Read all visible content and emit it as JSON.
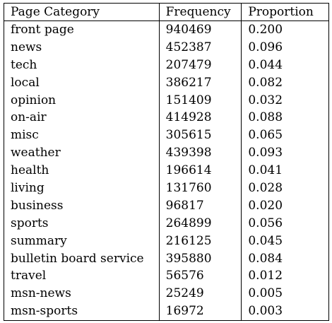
{
  "table": {
    "headers": [
      "Page Category",
      "Frequency",
      "Proportion"
    ],
    "rows": [
      [
        "front page",
        "940469",
        "0.200"
      ],
      [
        "news",
        "452387",
        "0.096"
      ],
      [
        "tech",
        "207479",
        "0.044"
      ],
      [
        "local",
        "386217",
        "0.082"
      ],
      [
        "opinion",
        "151409",
        "0.032"
      ],
      [
        "on-air",
        "414928",
        "0.088"
      ],
      [
        "misc",
        "305615",
        "0.065"
      ],
      [
        "weather",
        "439398",
        "0.093"
      ],
      [
        "health",
        "196614",
        "0.041"
      ],
      [
        "living",
        "131760",
        "0.028"
      ],
      [
        "business",
        "96817",
        "0.020"
      ],
      [
        "sports",
        "264899",
        "0.056"
      ],
      [
        "summary",
        "216125",
        "0.045"
      ],
      [
        "bulletin board service",
        "395880",
        "0.084"
      ],
      [
        "travel",
        "56576",
        "0.012"
      ],
      [
        "msn-news",
        "25249",
        "0.005"
      ],
      [
        "msn-sports",
        "16972",
        "0.003"
      ]
    ]
  }
}
